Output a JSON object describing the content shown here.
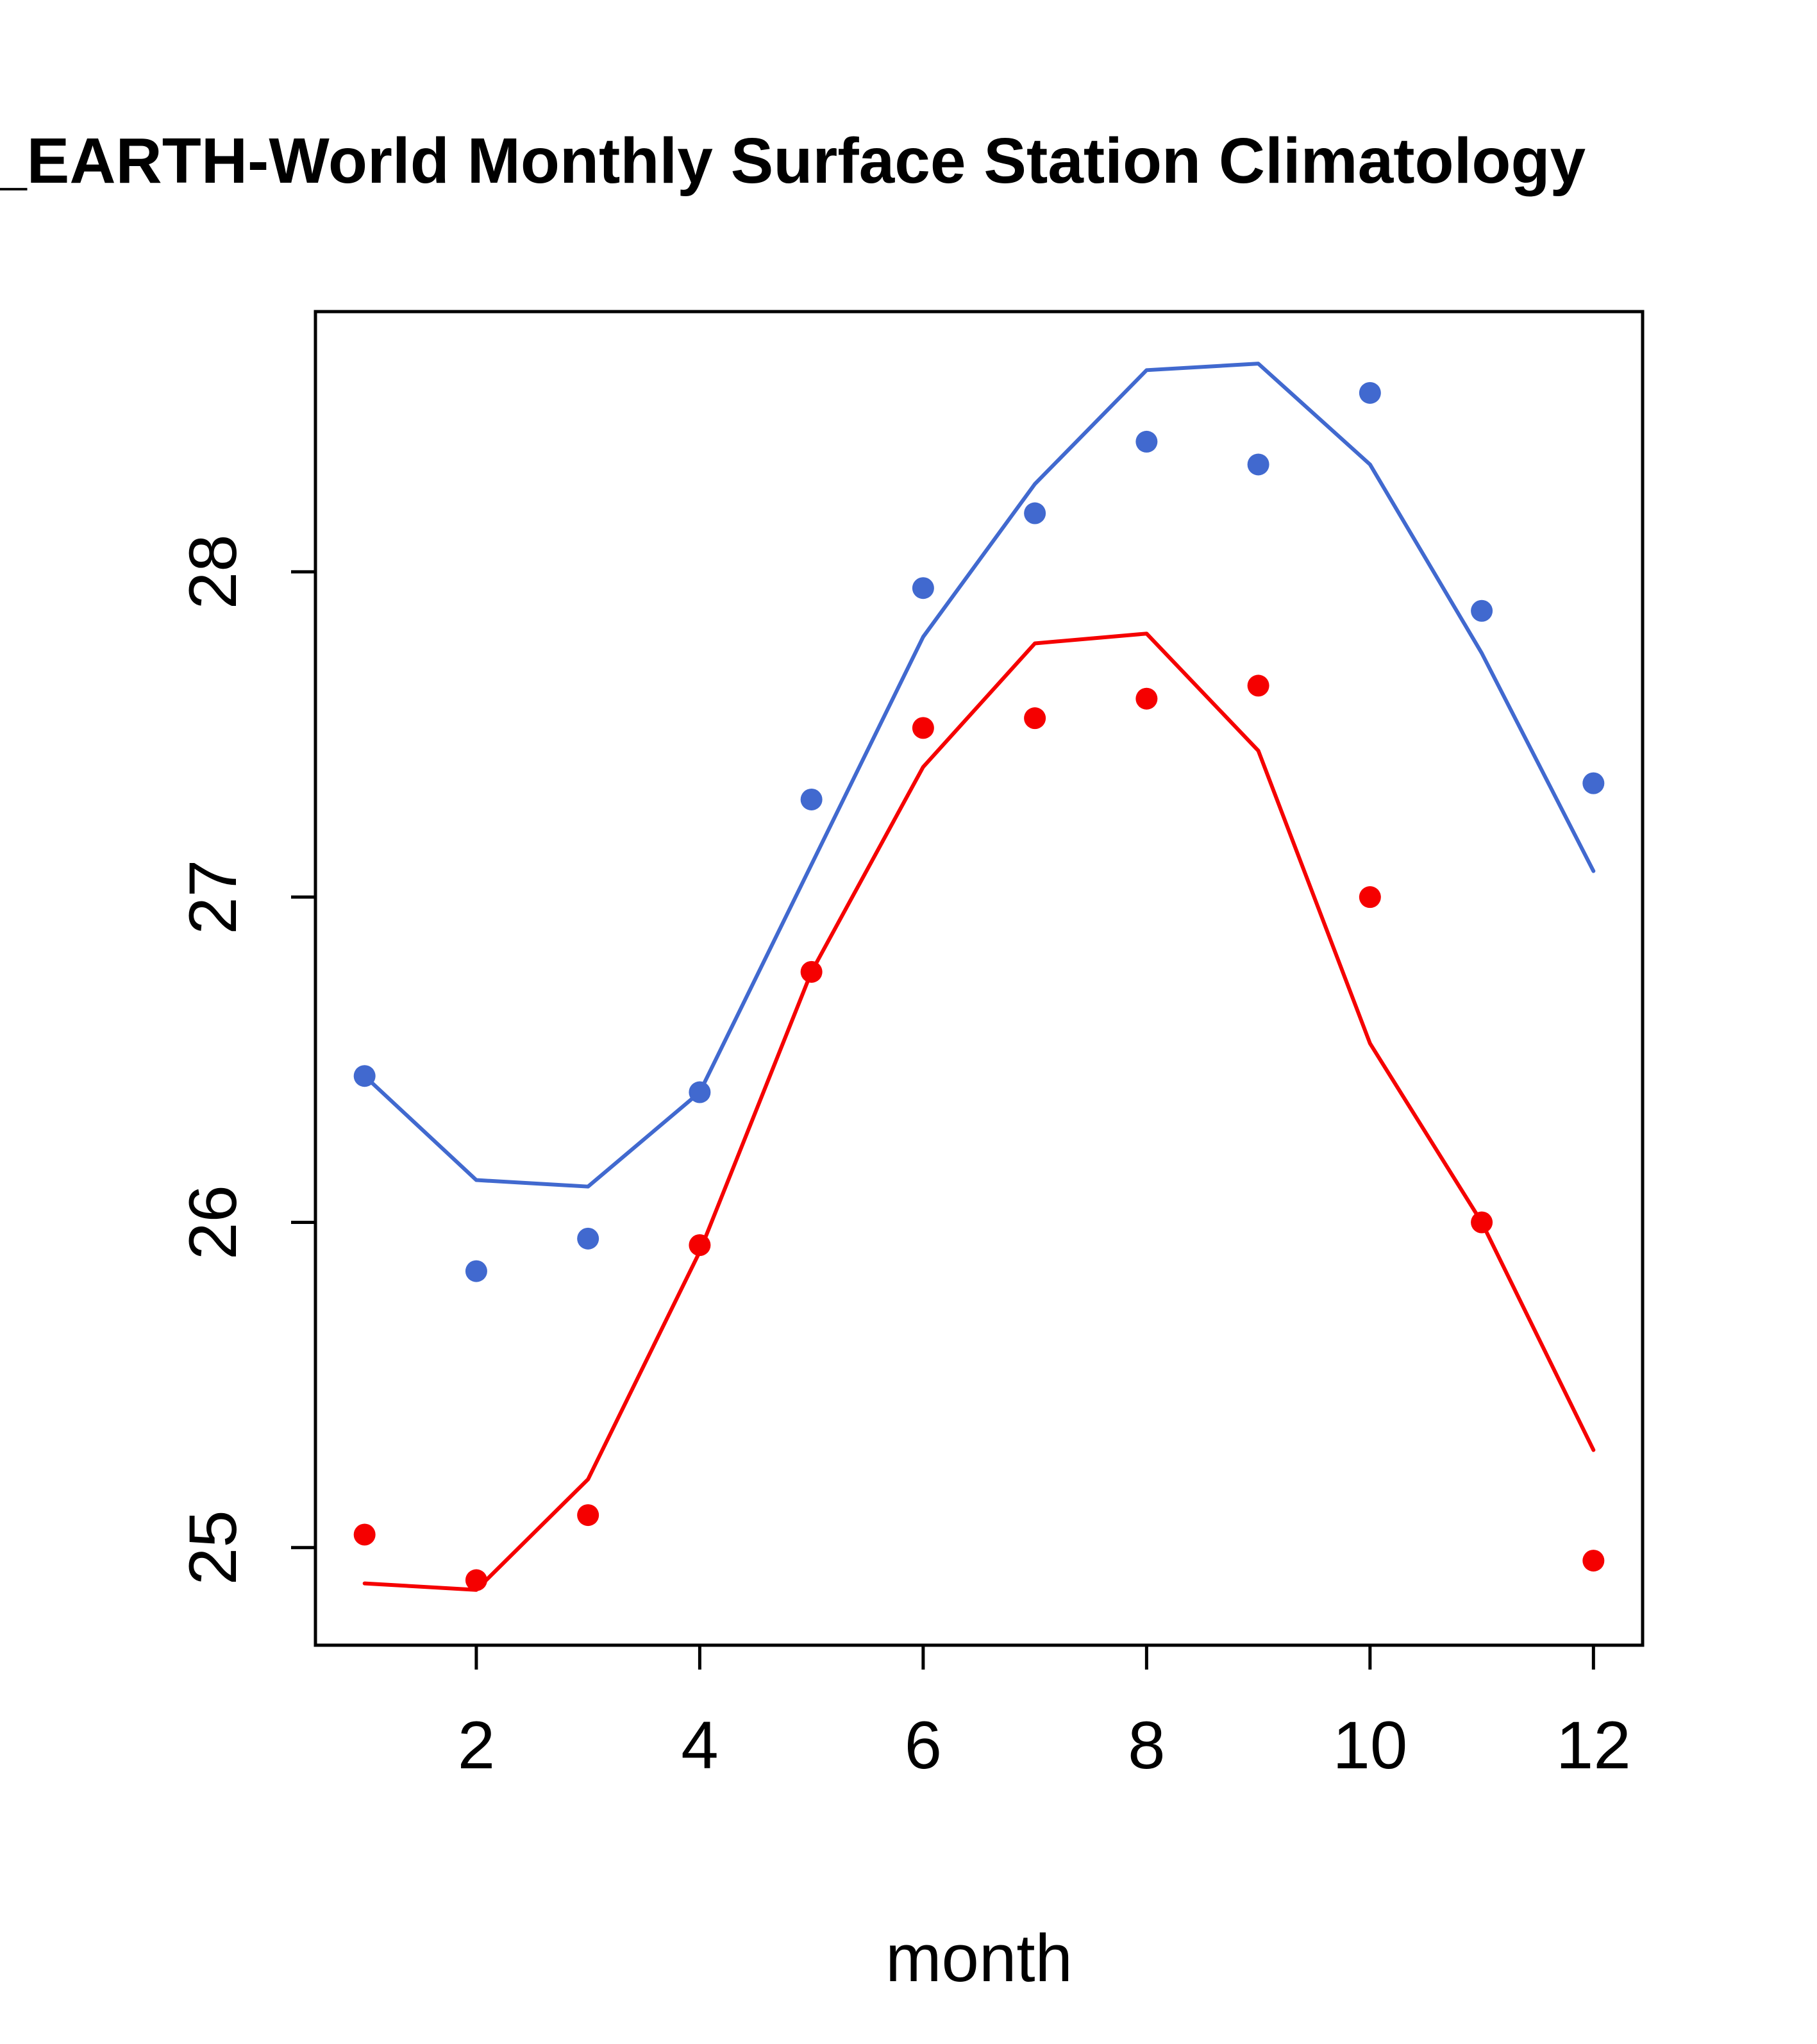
{
  "chart_data": {
    "type": "line-scatter",
    "title": "_EARTH-World Monthly Surface Station Climatology",
    "xlabel": "month",
    "ylabel": "",
    "x": [
      1,
      2,
      3,
      4,
      5,
      6,
      7,
      8,
      9,
      10,
      11,
      12
    ],
    "xticks": [
      2,
      4,
      6,
      8,
      10,
      12
    ],
    "yticks": [
      25,
      26,
      27,
      28
    ],
    "xlim": [
      0.56,
      12.44
    ],
    "ylim": [
      24.7,
      28.8
    ],
    "grid": false,
    "legend": "none",
    "colors": {
      "blue_series": "#4169cf",
      "red_series": "#f50000",
      "axis": "#000000",
      "background": "#ffffff"
    },
    "series": [
      {
        "name": "blue-series",
        "color": "#4169cf",
        "points": [
          26.45,
          25.85,
          25.95,
          26.4,
          27.3,
          27.95,
          28.18,
          28.4,
          28.33,
          28.55,
          27.88,
          27.35
        ],
        "line": [
          26.45,
          26.13,
          26.11,
          26.4,
          27.1,
          27.8,
          28.27,
          28.62,
          28.64,
          28.33,
          27.75,
          27.08
        ]
      },
      {
        "name": "red-series",
        "color": "#f50000",
        "points": [
          25.04,
          24.9,
          25.1,
          25.93,
          26.77,
          27.52,
          27.55,
          27.61,
          27.65,
          27.0,
          26.0,
          24.96
        ],
        "line": [
          24.89,
          24.87,
          25.21,
          25.91,
          26.77,
          27.4,
          27.78,
          27.81,
          27.45,
          26.55,
          26.0,
          25.3
        ]
      }
    ]
  }
}
